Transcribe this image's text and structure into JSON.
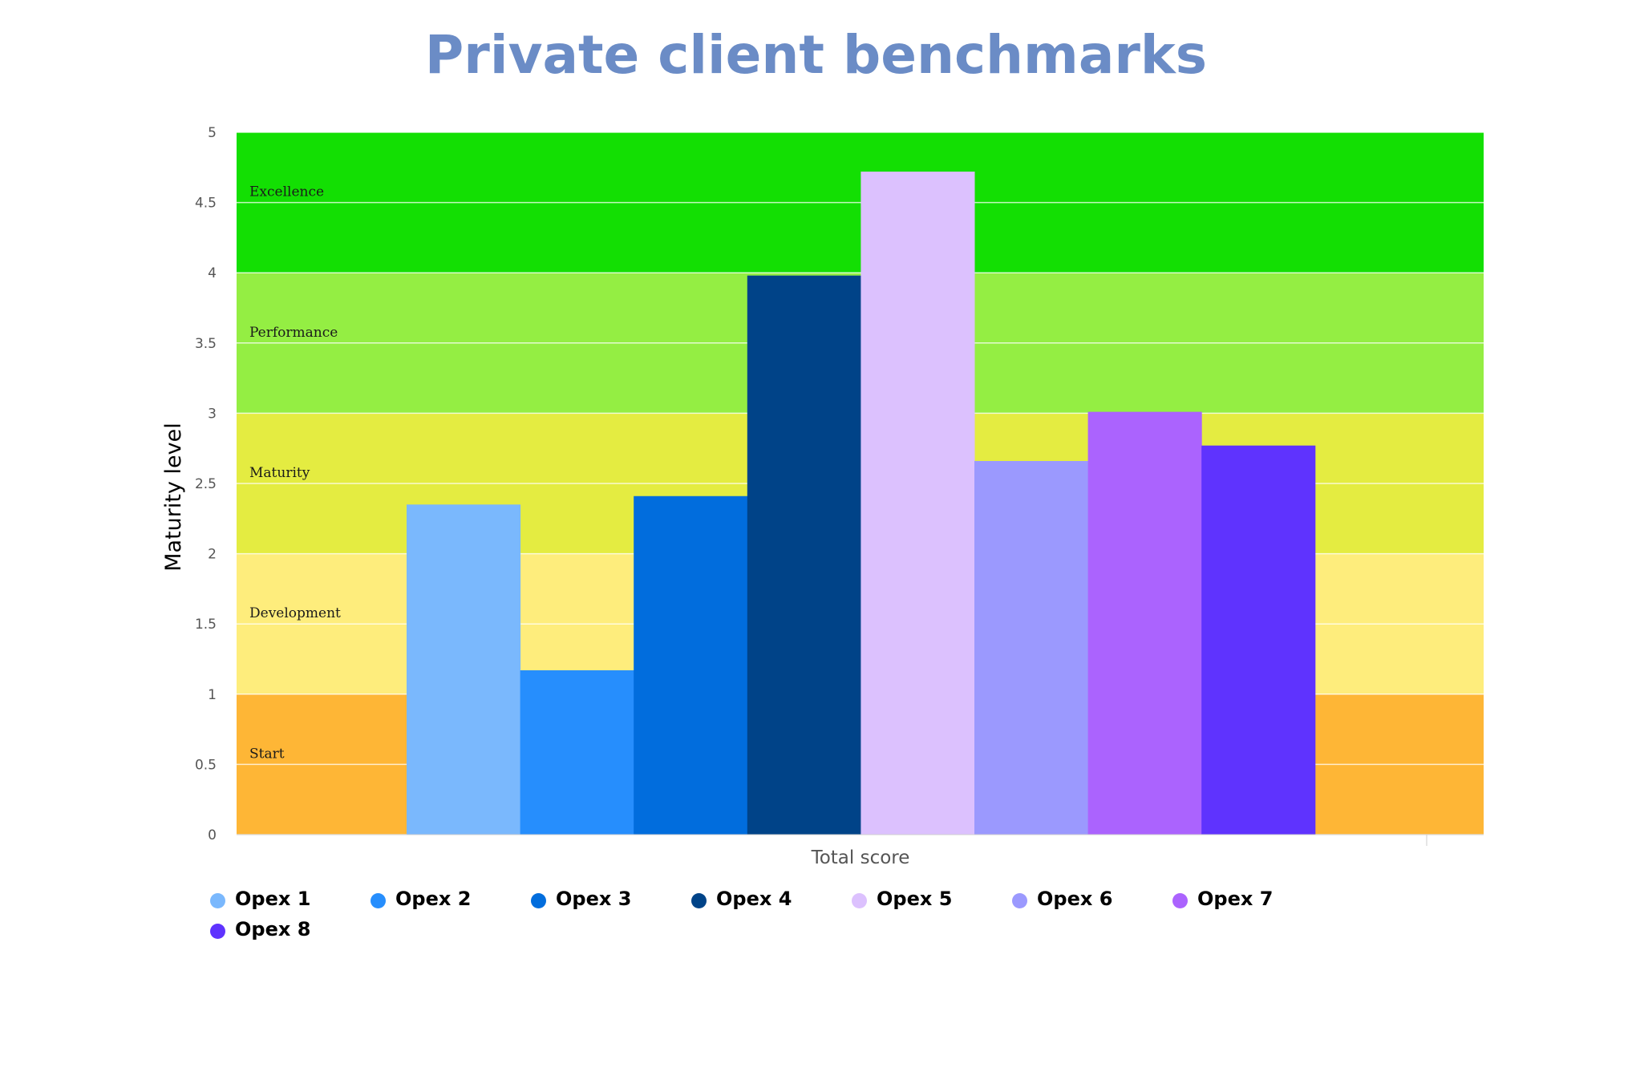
{
  "chart_data": {
    "type": "bar",
    "title": "Private client benchmarks",
    "xlabel": "Total score",
    "ylabel": "Maturity level",
    "ylim": [
      0,
      5
    ],
    "yticks": [
      "0",
      "0.5",
      "1",
      "1.5",
      "2",
      "2.5",
      "3",
      "3.5",
      "4",
      "4.5",
      "5"
    ],
    "categories": [
      "Total score"
    ],
    "bands": [
      {
        "label": "Start",
        "from": 0,
        "to": 1,
        "color": "#feb636"
      },
      {
        "label": "Development",
        "from": 1,
        "to": 2,
        "color": "#feed7c"
      },
      {
        "label": "Maturity",
        "from": 2,
        "to": 3,
        "color": "#e4ec41"
      },
      {
        "label": "Performance",
        "from": 3,
        "to": 4,
        "color": "#94ee43"
      },
      {
        "label": "Excellence",
        "from": 4,
        "to": 5,
        "color": "#13df03"
      }
    ],
    "series": [
      {
        "name": "Opex 1",
        "values": [
          2.35
        ],
        "color": "#7ab8fd"
      },
      {
        "name": "Opex 2",
        "values": [
          1.17
        ],
        "color": "#268efd"
      },
      {
        "name": "Opex 3",
        "values": [
          2.41
        ],
        "color": "#016ddd"
      },
      {
        "name": "Opex 4",
        "values": [
          3.98
        ],
        "color": "#004388"
      },
      {
        "name": "Opex 5",
        "values": [
          4.72
        ],
        "color": "#dcc1fe"
      },
      {
        "name": "Opex 6",
        "values": [
          2.66
        ],
        "color": "#9b99fe"
      },
      {
        "name": "Opex 7",
        "values": [
          3.01
        ],
        "color": "#ab63fe"
      },
      {
        "name": "Opex 8",
        "values": [
          2.77
        ],
        "color": "#5f33fe"
      }
    ],
    "grid": true,
    "legend_position": "bottom-left"
  }
}
